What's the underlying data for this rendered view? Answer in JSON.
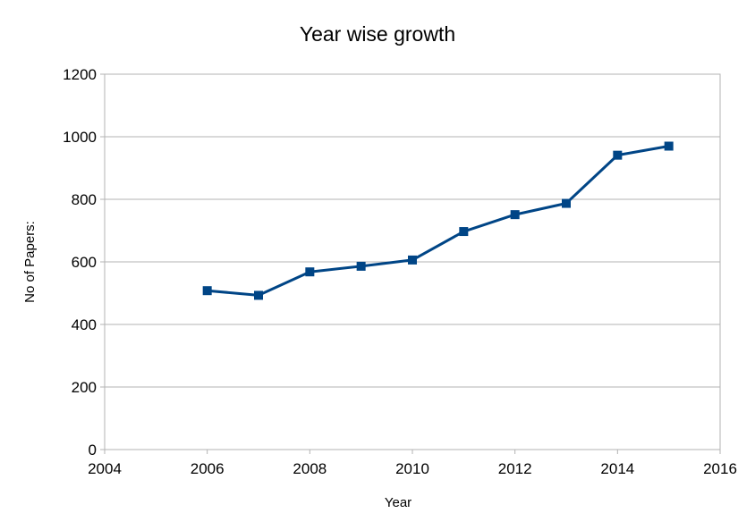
{
  "chart_data": {
    "type": "line",
    "title": "Year wise growth",
    "xlabel": "Year",
    "ylabel": "No of Papers:",
    "xlim": [
      2004,
      2016
    ],
    "ylim": [
      0,
      1200
    ],
    "x_ticks": [
      2004,
      2006,
      2008,
      2010,
      2012,
      2014,
      2016
    ],
    "y_ticks": [
      0,
      200,
      400,
      600,
      800,
      1000,
      1200
    ],
    "grid": "horizontal",
    "legend": "none",
    "series": [
      {
        "color": "#004586",
        "marker": "square",
        "x": [
          2006,
          2007,
          2008,
          2009,
          2010,
          2011,
          2012,
          2013,
          2014,
          2015
        ],
        "y": [
          508,
          493,
          568,
          586,
          606,
          697,
          751,
          787,
          941,
          970
        ]
      }
    ]
  }
}
